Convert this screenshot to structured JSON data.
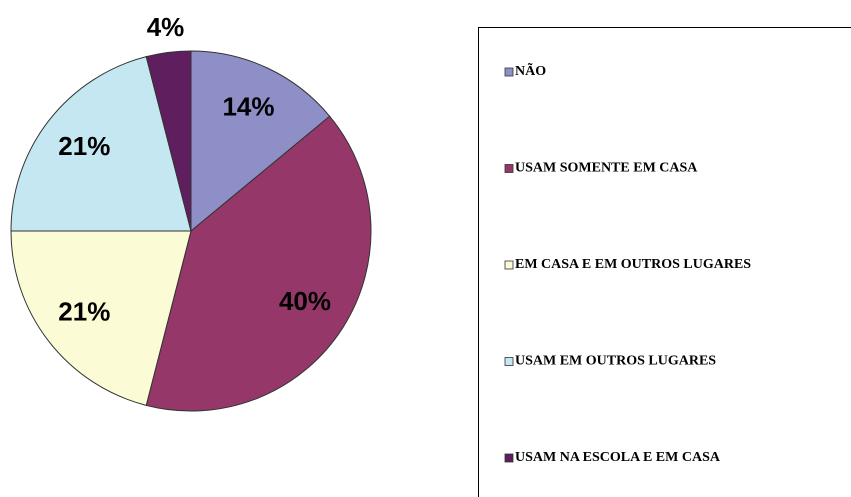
{
  "chart_data": {
    "type": "pie",
    "categories": [
      "NÃO",
      "USAM SOMENTE EM CASA",
      "EM CASA E EM OUTROS LUGARES",
      "USAM EM OUTROS LUGARES",
      "USAM NA ESCOLA E EM CASA"
    ],
    "values": [
      14,
      40,
      21,
      21,
      4
    ],
    "value_labels": [
      "14%",
      "40%",
      "21%",
      "21%",
      "4%"
    ],
    "colors": [
      "#8f8fc8",
      "#953869",
      "#fbfbd5",
      "#c4e7f1",
      "#5f1f5f"
    ],
    "legend": "right"
  }
}
